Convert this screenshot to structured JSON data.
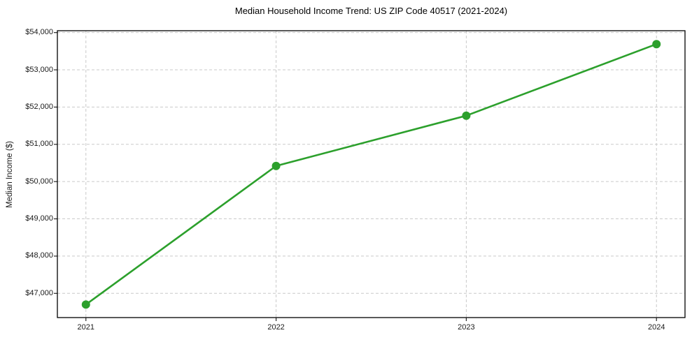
{
  "chart_data": {
    "type": "line",
    "title": "Median Household Income Trend: US ZIP Code 40517 (2021-2024)",
    "xlabel": "",
    "ylabel": "Median Income ($)",
    "x": [
      2021,
      2022,
      2023,
      2024
    ],
    "xtick_labels": [
      "2021",
      "2022",
      "2023",
      "2024"
    ],
    "series": [
      {
        "name": "Median Household Income",
        "values": [
          46700,
          50420,
          51770,
          53690
        ],
        "color": "#2ca02c",
        "marker": "circle"
      }
    ],
    "yticks": [
      47000,
      48000,
      49000,
      50000,
      51000,
      52000,
      53000,
      54000
    ],
    "ytick_labels": [
      "$47,000",
      "$48,000",
      "$49,000",
      "$50,000",
      "$51,000",
      "$52,000",
      "$53,000",
      "$54,000"
    ],
    "xlim": [
      2020.85,
      2024.15
    ],
    "ylim": [
      46350,
      54050
    ],
    "grid": true,
    "grid_line_style": "dashed",
    "legend": "none",
    "colors": {
      "line": "#2ca02c",
      "grid": "#c9c9c9",
      "spine": "#000000",
      "tick": "#262626",
      "background": "#ffffff",
      "text": "#1a1a1a"
    }
  }
}
